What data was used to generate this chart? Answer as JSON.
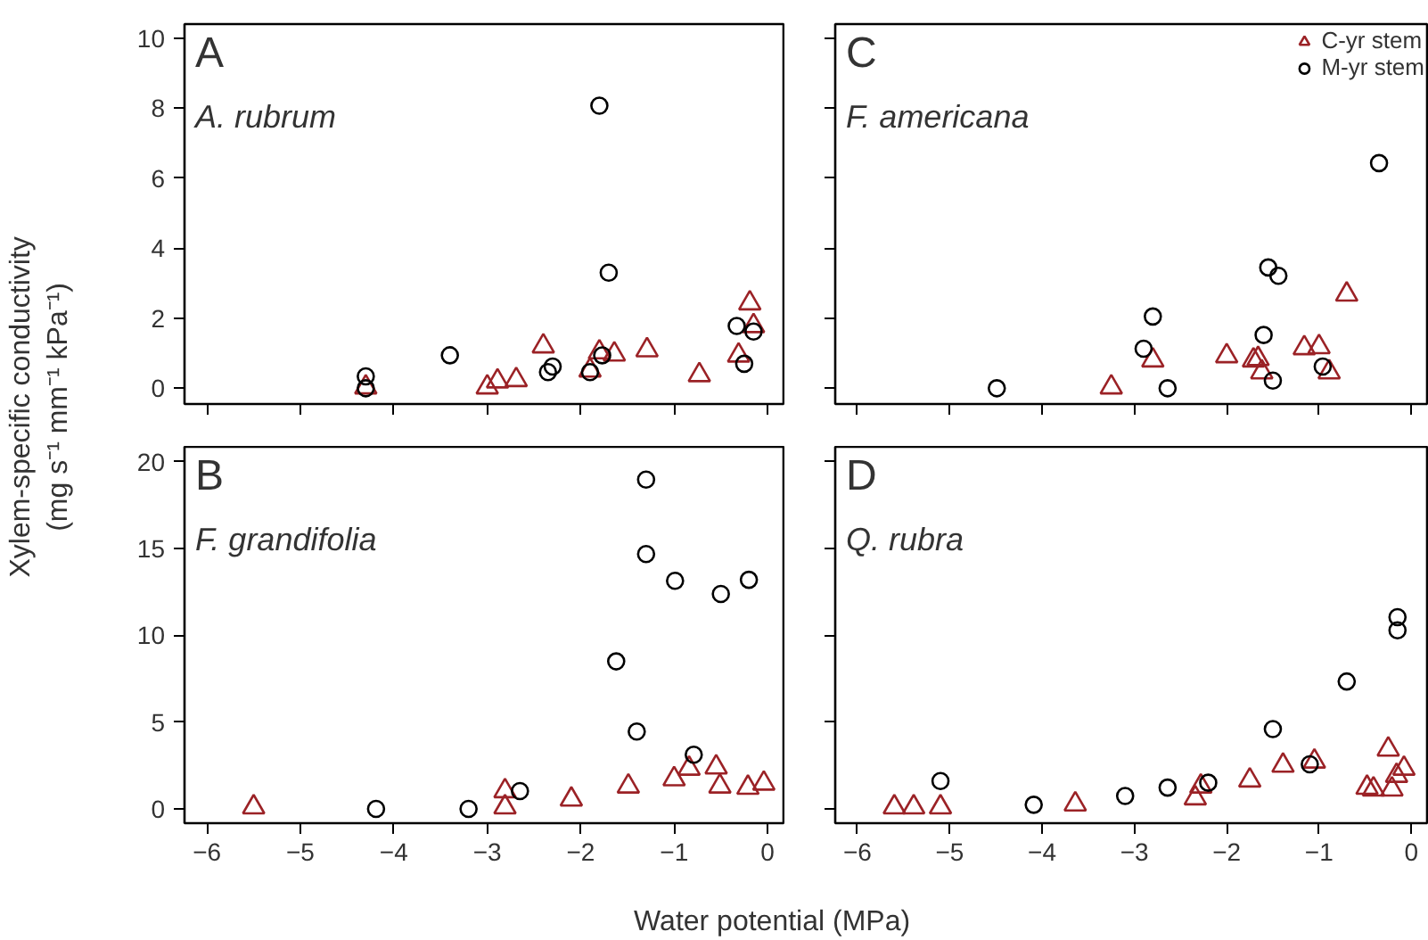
{
  "chart_data": [
    {
      "type": "scatter",
      "title": "A",
      "subtitle": "A. rubrum",
      "ylabel": "Xylem-specific conductivity\n(mg s⁻¹ mm⁻¹ kPa⁻¹)",
      "xlim": [
        -6.24,
        0.19
      ],
      "ylim": [
        -0.45,
        10.4
      ],
      "xticks": [
        -6,
        -5,
        -4,
        -3,
        -2,
        -1,
        0
      ],
      "yticks": [
        0,
        2,
        4,
        6,
        8,
        10
      ],
      "tick_labels": "y",
      "series": [
        {
          "color": "#9b2226",
          "marker": "triangle",
          "x": [
            -4.3,
            -3.0,
            -2.89,
            -2.69,
            -2.4,
            -1.9,
            -1.8,
            -1.64,
            -1.29,
            -0.73,
            -0.31,
            -0.19,
            -0.15
          ],
          "values": [
            0.03,
            0.03,
            0.2,
            0.24,
            1.2,
            0.51,
            1.03,
            0.97,
            1.09,
            0.38,
            0.94,
            2.43,
            1.78
          ]
        },
        {
          "color": "#000000",
          "marker": "circle",
          "x": [
            -4.3,
            -4.3,
            -3.4,
            -2.35,
            -2.3,
            -1.9,
            -1.8,
            -1.77,
            -1.7,
            -0.33,
            -0.15,
            -0.25
          ],
          "values": [
            0.34,
            0.0,
            0.94,
            0.46,
            0.62,
            0.46,
            8.07,
            0.94,
            3.3,
            1.78,
            1.62,
            0.7
          ]
        }
      ]
    },
    {
      "type": "scatter",
      "title": "C",
      "subtitle": "F. americana",
      "xlim": [
        -6.24,
        0.19
      ],
      "ylim": [
        -0.45,
        10.4
      ],
      "xticks": [
        -6,
        -5,
        -4,
        -3,
        -2,
        -1,
        0
      ],
      "yticks": [
        0,
        2,
        4,
        6,
        8,
        10
      ],
      "tick_labels": false,
      "legend": "top right",
      "series": [
        {
          "name": "C-yr stem",
          "color": "#9b2226",
          "marker": "triangle",
          "x": [
            -3.25,
            -2.8,
            -2.0,
            -1.71,
            -1.66,
            -1.62,
            -1.16,
            -1.0,
            -0.89,
            -0.7
          ],
          "values": [
            0.03,
            0.8,
            0.92,
            0.8,
            0.84,
            0.46,
            1.15,
            1.18,
            0.46,
            2.68
          ]
        },
        {
          "name": "M-yr stem",
          "color": "#000000",
          "marker": "circle",
          "x": [
            -4.49,
            -2.9,
            -2.8,
            -2.64,
            -1.6,
            -1.55,
            -1.44,
            -1.5,
            -0.96,
            -0.35
          ],
          "values": [
            0.0,
            1.13,
            2.05,
            0.0,
            1.52,
            3.45,
            3.21,
            0.22,
            0.62,
            6.43
          ]
        }
      ]
    },
    {
      "type": "scatter",
      "title": "B",
      "subtitle": "F. grandifolia",
      "xlabel": "Water potential (MPa)",
      "xlim": [
        -6.24,
        0.19
      ],
      "ylim": [
        -0.82,
        20.86
      ],
      "xticks": [
        -6,
        -5,
        -4,
        -3,
        -2,
        -1,
        0
      ],
      "yticks": [
        0,
        5,
        10,
        15,
        20
      ],
      "series": [
        {
          "color": "#9b2226",
          "marker": "triangle",
          "x": [
            -5.5,
            -2.81,
            -2.81,
            -2.1,
            -1.49,
            -1.0,
            -0.84,
            -0.55,
            -0.51,
            -0.21,
            -0.04
          ],
          "values": [
            0.1,
            0.1,
            1.03,
            0.55,
            1.3,
            1.72,
            2.33,
            2.4,
            1.3,
            1.23,
            1.47
          ]
        },
        {
          "color": "#000000",
          "marker": "circle",
          "x": [
            -4.19,
            -3.2,
            -2.65,
            -1.62,
            -1.4,
            -1.3,
            -1.3,
            -0.99,
            -0.79,
            -0.5,
            -0.2
          ],
          "values": [
            0.0,
            0.0,
            1.03,
            8.5,
            4.46,
            18.97,
            14.68,
            13.14,
            3.12,
            12.38,
            13.2
          ]
        }
      ]
    },
    {
      "type": "scatter",
      "title": "D",
      "subtitle": "Q. rubra",
      "xlim": [
        -6.24,
        0.19
      ],
      "ylim": [
        -0.82,
        20.86
      ],
      "xticks": [
        -6,
        -5,
        -4,
        -3,
        -2,
        -1,
        0
      ],
      "yticks": [
        0,
        5,
        10,
        15,
        20
      ],
      "tick_labels": "x",
      "series": [
        {
          "color": "#9b2226",
          "marker": "triangle",
          "x": [
            -5.6,
            -5.39,
            -5.1,
            -3.64,
            -2.34,
            -2.28,
            -1.75,
            -1.39,
            -1.05,
            -0.48,
            -0.41,
            -0.25,
            -0.21,
            -0.16,
            -0.08
          ],
          "values": [
            0.1,
            0.1,
            0.1,
            0.27,
            0.62,
            1.3,
            1.65,
            2.5,
            2.74,
            1.23,
            1.13,
            3.43,
            1.13,
            1.92,
            2.33
          ]
        },
        {
          "color": "#000000",
          "marker": "circle",
          "x": [
            -5.1,
            -4.09,
            -3.1,
            -2.64,
            -2.2,
            -1.5,
            -1.1,
            -0.7,
            -0.15,
            -0.15
          ],
          "values": [
            1.61,
            0.24,
            0.75,
            1.23,
            1.51,
            4.6,
            2.57,
            7.34,
            11.05,
            10.29
          ]
        }
      ]
    }
  ]
}
